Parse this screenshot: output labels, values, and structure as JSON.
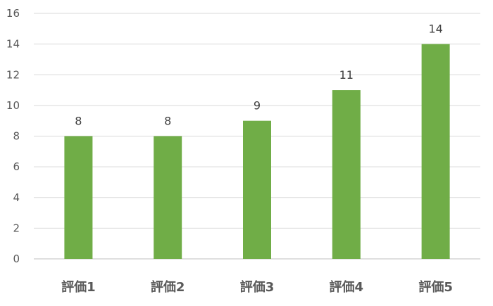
{
  "chart_data": {
    "type": "bar",
    "categories": [
      "評価1",
      "評価2",
      "評価3",
      "評価4",
      "評価5"
    ],
    "values": [
      8,
      8,
      9,
      11,
      14
    ],
    "ylim": [
      0,
      16
    ],
    "yticks": [
      0,
      2,
      4,
      6,
      8,
      10,
      12,
      14,
      16
    ],
    "grid": true,
    "data_labels": true,
    "bar_color": "#70ad47",
    "title": "",
    "xlabel": "",
    "ylabel": ""
  }
}
